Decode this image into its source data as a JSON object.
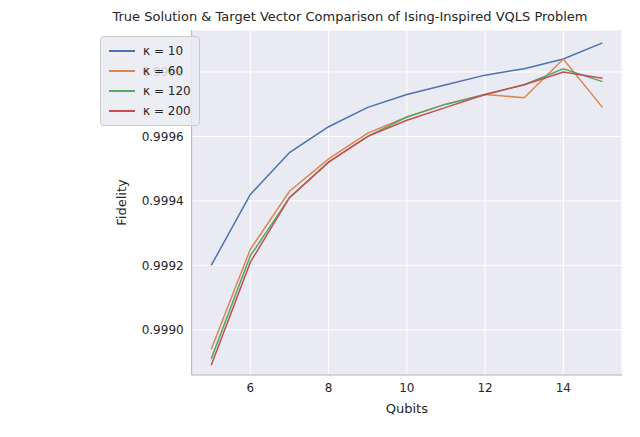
{
  "chart_data": {
    "type": "line",
    "title": "True Solution & Target Vector Comparison of Ising-Inspired VQLS Problem",
    "x_label": "Qubits",
    "y_label": "Fidelity",
    "x": [
      5,
      6,
      7,
      8,
      9,
      10,
      11,
      12,
      13,
      14,
      15
    ],
    "series": [
      {
        "name": "κ = 10",
        "color": "#4c72b0",
        "values": [
          0.9992,
          0.99942,
          0.99955,
          0.99963,
          0.99969,
          0.99973,
          0.99976,
          0.99979,
          0.99981,
          0.99984,
          0.99989
        ]
      },
      {
        "name": "κ = 60",
        "color": "#dd8452",
        "values": [
          0.99894,
          0.99925,
          0.99943,
          0.99953,
          0.99961,
          0.99966,
          0.9997,
          0.99973,
          0.99972,
          0.99984,
          0.99969
        ]
      },
      {
        "name": "κ = 120",
        "color": "#55a868",
        "values": [
          0.99891,
          0.99923,
          0.99941,
          0.99952,
          0.9996,
          0.99966,
          0.9997,
          0.99973,
          0.99976,
          0.99981,
          0.99977
        ]
      },
      {
        "name": "κ = 200",
        "color": "#c44e52",
        "values": [
          0.99889,
          0.99921,
          0.99941,
          0.99952,
          0.9996,
          0.99965,
          0.99969,
          0.99973,
          0.99976,
          0.9998,
          0.99978
        ]
      }
    ],
    "xlim": [
      4.5,
      15.5
    ],
    "xticks": [
      6,
      8,
      10,
      12,
      14
    ],
    "ylim": [
      0.99886,
      0.99993
    ],
    "yticks": [
      {
        "value": 0.999,
        "label": "0.9990"
      },
      {
        "value": 0.9992,
        "label": "0.9992"
      },
      {
        "value": 0.9994,
        "label": "0.9994"
      },
      {
        "value": 0.9996,
        "label": "0.9996"
      },
      {
        "value": 0.9998,
        "label": "0.9998"
      }
    ],
    "grid": true,
    "legend": "upper left"
  }
}
